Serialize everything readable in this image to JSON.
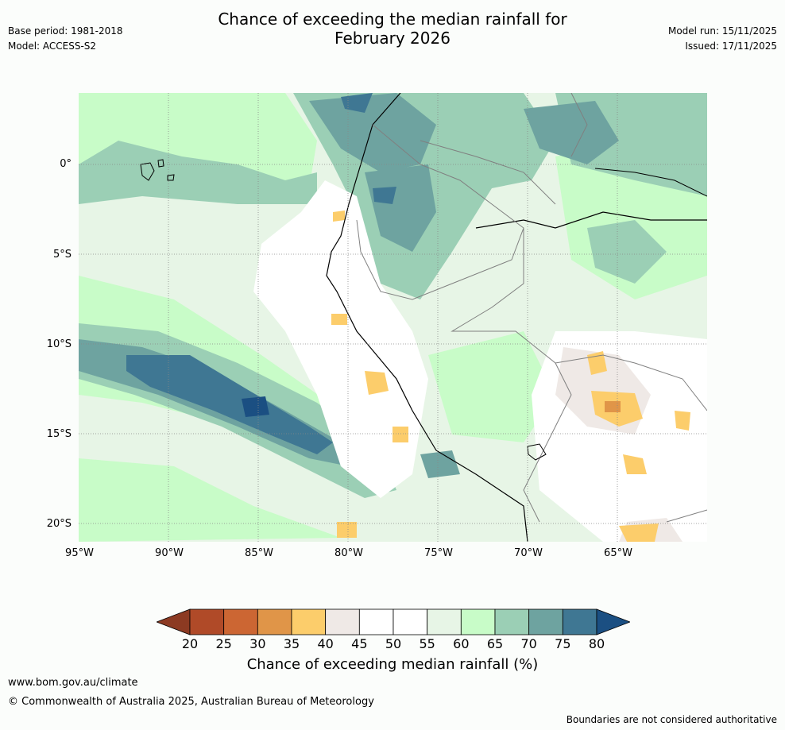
{
  "header": {
    "title_line1": "Chance of exceeding the median rainfall for",
    "title_line2": "February 2026",
    "base_period": "Base period: 1981-2018",
    "model": "Model: ACCESS-S2",
    "model_run": "Model run: 15/11/2025",
    "issued": "Issued: 17/11/2025"
  },
  "axes": {
    "lat_labels": [
      "0°",
      "5°S",
      "10°S",
      "15°S",
      "20°S"
    ],
    "lon_labels": [
      "95°W",
      "90°W",
      "85°W",
      "80°W",
      "75°W",
      "70°W",
      "65°W"
    ]
  },
  "legend": {
    "label": "Chance of exceeding median rainfall (%)",
    "ticks": [
      "20",
      "25",
      "30",
      "35",
      "40",
      "45",
      "50",
      "55",
      "60",
      "65",
      "70",
      "75",
      "80"
    ],
    "colors": [
      "#8c3a22",
      "#b04a28",
      "#cc6633",
      "#e09548",
      "#fccd6b",
      "#efe9e6",
      "#ffffff",
      "#ffffff",
      "#e7f5e6",
      "#c8fcc8",
      "#9bcfb5",
      "#6ea3a0",
      "#3f7793",
      "#1b4f82"
    ]
  },
  "footer": {
    "site": "www.bom.gov.au/climate",
    "copyright": "© Commonwealth of Australia 2025, Australian Bureau of Meteorology",
    "disclaimer": "Boundaries are not considered authoritative"
  }
}
